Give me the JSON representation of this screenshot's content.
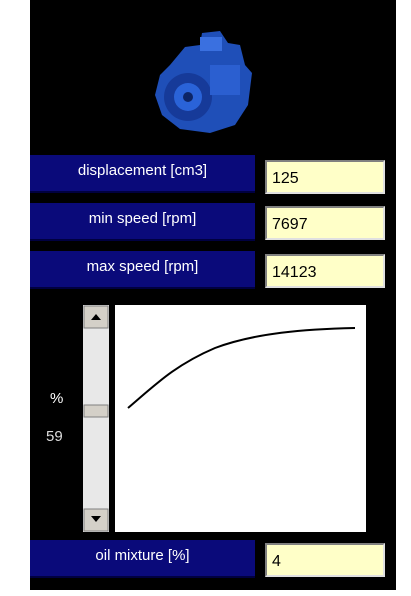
{
  "fields": [
    {
      "label": "displacement [cm3]",
      "value": "125"
    },
    {
      "label": "min speed [rpm]",
      "value": "7697"
    },
    {
      "label": "max speed [rpm]",
      "value": "14123"
    }
  ],
  "scale": {
    "unit": "%",
    "value": "59"
  },
  "oil": {
    "label": "oil mixture [%]",
    "value": "4"
  }
}
